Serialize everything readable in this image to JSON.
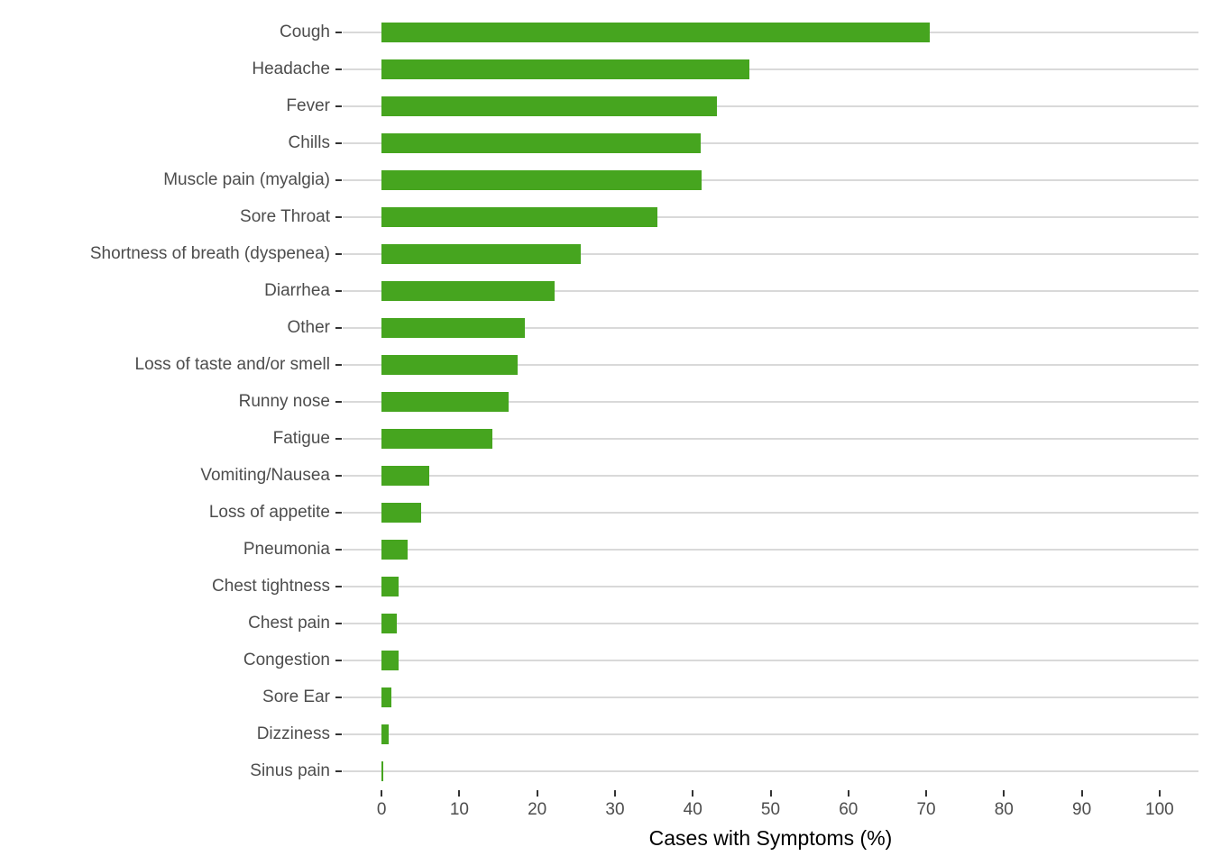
{
  "chart_data": {
    "type": "bar",
    "orientation": "horizontal",
    "title": "",
    "xlabel": "Cases with Symptoms (%)",
    "ylabel": "",
    "categories": [
      "Cough",
      "Headache",
      "Fever",
      "Chills",
      "Muscle pain (myalgia)",
      "Sore Throat",
      "Shortness of breath (dyspenea)",
      "Diarrhea",
      "Other",
      "Loss of taste and/or smell",
      "Runny nose",
      "Fatigue",
      "Vomiting/Nausea",
      "Loss of appetite",
      "Pneumonia",
      "Chest tightness",
      "Chest pain",
      "Congestion",
      "Sore Ear",
      "Dizziness",
      "Sinus pain"
    ],
    "values": [
      70.5,
      47.3,
      43.1,
      41.0,
      41.1,
      35.5,
      25.6,
      22.2,
      18.4,
      17.5,
      16.3,
      14.3,
      6.1,
      5.1,
      3.4,
      2.2,
      2.0,
      2.2,
      1.3,
      0.9,
      0.2
    ],
    "x_ticks": [
      0,
      10,
      20,
      30,
      40,
      50,
      60,
      70,
      80,
      90,
      100
    ],
    "xlim": [
      -5,
      105
    ],
    "legend": "none",
    "grid": "horizontal-category-lines-only",
    "bar_color": "#46a51f",
    "gridline_color": "#d9d9d9",
    "tick_color": "#333333",
    "axis_text_color": "#4d4d4d",
    "axis_title_color": "#000000",
    "background_color": "#ffffff"
  }
}
